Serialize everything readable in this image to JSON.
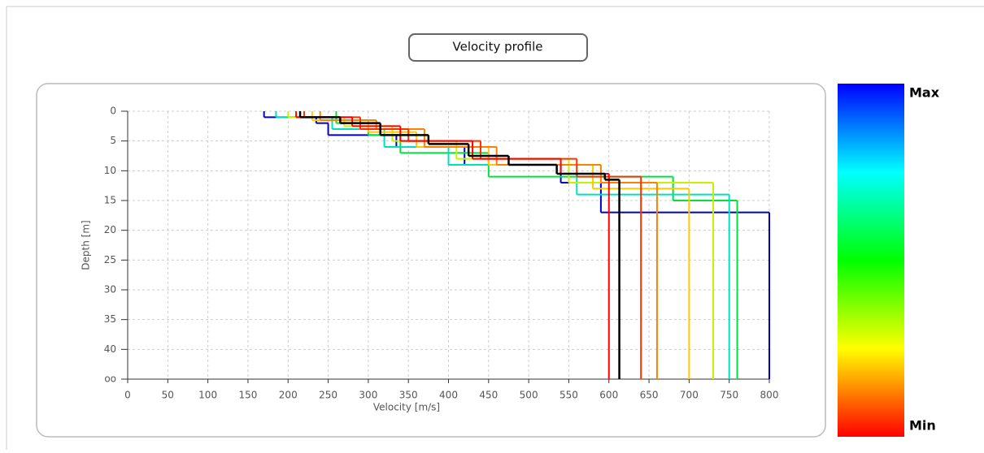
{
  "chart_data": {
    "type": "step-profile",
    "title": "Velocity profile",
    "xlabel": "Velocity [m/s]",
    "ylabel": "Depth [m]",
    "xlim": [
      0,
      800
    ],
    "xticks": [
      0,
      50,
      100,
      150,
      200,
      250,
      300,
      350,
      400,
      450,
      500,
      550,
      600,
      650,
      700,
      750,
      800
    ],
    "ylim": [
      0,
      45
    ],
    "yticks": [
      0,
      5,
      10,
      15,
      20,
      25,
      30,
      35,
      40,
      {
        "value": 45,
        "label": "oo"
      }
    ],
    "y_inverted": true,
    "grid": true,
    "colorbar": {
      "max_label": "Max",
      "min_label": "Min",
      "colors": [
        "#0000ff",
        "#00ffff",
        "#00ff00",
        "#ffff00",
        "#ff0000"
      ]
    },
    "series": [
      {
        "color": "#0000cc",
        "depths": [
          0,
          1,
          2,
          4,
          6,
          9,
          12,
          17
        ],
        "values": [
          170,
          235,
          250,
          335,
          420,
          540,
          590,
          800
        ]
      },
      {
        "color": "#00e040",
        "depths": [
          0,
          2,
          4,
          7,
          11,
          15
        ],
        "values": [
          260,
          300,
          340,
          450,
          680,
          760
        ]
      },
      {
        "color": "#00e0c0",
        "depths": [
          0,
          1,
          3,
          6,
          9,
          14
        ],
        "values": [
          185,
          255,
          320,
          400,
          560,
          750
        ]
      },
      {
        "color": "#c8f000",
        "depths": [
          0,
          1,
          2.5,
          5,
          8,
          12
        ],
        "values": [
          200,
          270,
          330,
          410,
          550,
          730
        ]
      },
      {
        "color": "#ffc800",
        "depths": [
          0,
          1.5,
          3.5,
          6,
          9,
          13
        ],
        "values": [
          230,
          300,
          360,
          450,
          580,
          700
        ]
      },
      {
        "color": "#ff8000",
        "depths": [
          0,
          1.5,
          3,
          6,
          9,
          12
        ],
        "values": [
          240,
          310,
          370,
          460,
          590,
          660
        ]
      },
      {
        "color": "#ff3000",
        "depths": [
          0,
          1,
          3,
          5,
          8,
          11
        ],
        "values": [
          220,
          290,
          350,
          440,
          560,
          640
        ]
      },
      {
        "color": "#ff0000",
        "depths": [
          0,
          1,
          2.5,
          5,
          8,
          10.5
        ],
        "values": [
          210,
          280,
          340,
          430,
          540,
          600
        ]
      },
      {
        "color": "#000000",
        "depths": [
          0,
          1,
          2,
          4,
          5.5,
          7.5,
          9,
          10.5,
          11.5
        ],
        "values": [
          215,
          265,
          315,
          375,
          425,
          475,
          535,
          595,
          613
        ]
      }
    ]
  }
}
